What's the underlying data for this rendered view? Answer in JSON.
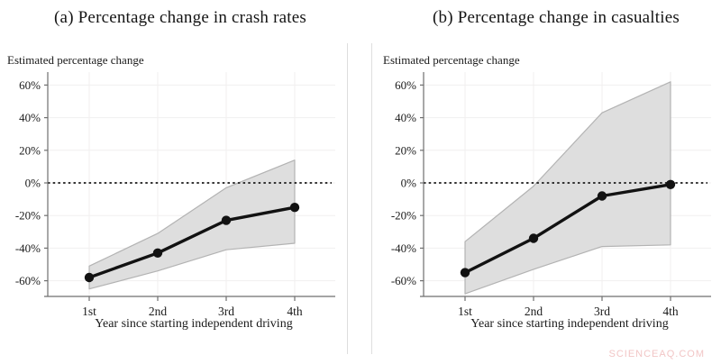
{
  "watermark": "SCIENCEAQ.COM",
  "colors": {
    "band_fill": "#dcdcdc",
    "band_edge": "#b3b3b3",
    "line": "#121212",
    "point": "#121212",
    "zero_line": "#1a1a1a",
    "grid": "#f1efef",
    "axis": "#6f6f6f",
    "tick_text": "#1a1a1a",
    "divider": "#dedede",
    "watermark_text": "#f2c6c6"
  },
  "chart_data": [
    {
      "type": "line",
      "panel": "a",
      "title": "(a) Percentage change in crash rates",
      "ylabel_title": "Estimated percentage change",
      "xlabel": "Year since starting independent driving",
      "categories": [
        "1st",
        "2nd",
        "3rd",
        "4th"
      ],
      "series": [
        {
          "name": "estimate",
          "values": [
            -58,
            -43,
            -23,
            -15
          ]
        },
        {
          "name": "ci_upper",
          "values": [
            -51,
            -31,
            -3,
            14
          ]
        },
        {
          "name": "ci_lower",
          "values": [
            -65,
            -54,
            -41,
            -37
          ]
        }
      ],
      "yticks": [
        60,
        40,
        20,
        0,
        -20,
        -40,
        -60
      ],
      "ytick_labels": [
        "60%",
        "40%",
        "20%",
        "0%",
        "-20%",
        "-40%",
        "-60%"
      ],
      "ylim": [
        -72,
        68
      ],
      "zero_line": true,
      "grid": true,
      "legend": "none"
    },
    {
      "type": "line",
      "panel": "b",
      "title": "(b) Percentage change in casualties",
      "ylabel_title": "Estimated percentage change",
      "xlabel": "Year since starting independent driving",
      "categories": [
        "1st",
        "2nd",
        "3rd",
        "4th"
      ],
      "series": [
        {
          "name": "estimate",
          "values": [
            -55,
            -34,
            -8,
            -1
          ]
        },
        {
          "name": "ci_upper",
          "values": [
            -36,
            -2,
            43,
            62
          ]
        },
        {
          "name": "ci_lower",
          "values": [
            -68,
            -53,
            -39,
            -38
          ]
        }
      ],
      "yticks": [
        60,
        40,
        20,
        0,
        -20,
        -40,
        -60
      ],
      "ytick_labels": [
        "60%",
        "40%",
        "20%",
        "0%",
        "-20%",
        "-40%",
        "-60%"
      ],
      "ylim": [
        -72,
        68
      ],
      "zero_line": true,
      "grid": true,
      "legend": "none"
    }
  ]
}
